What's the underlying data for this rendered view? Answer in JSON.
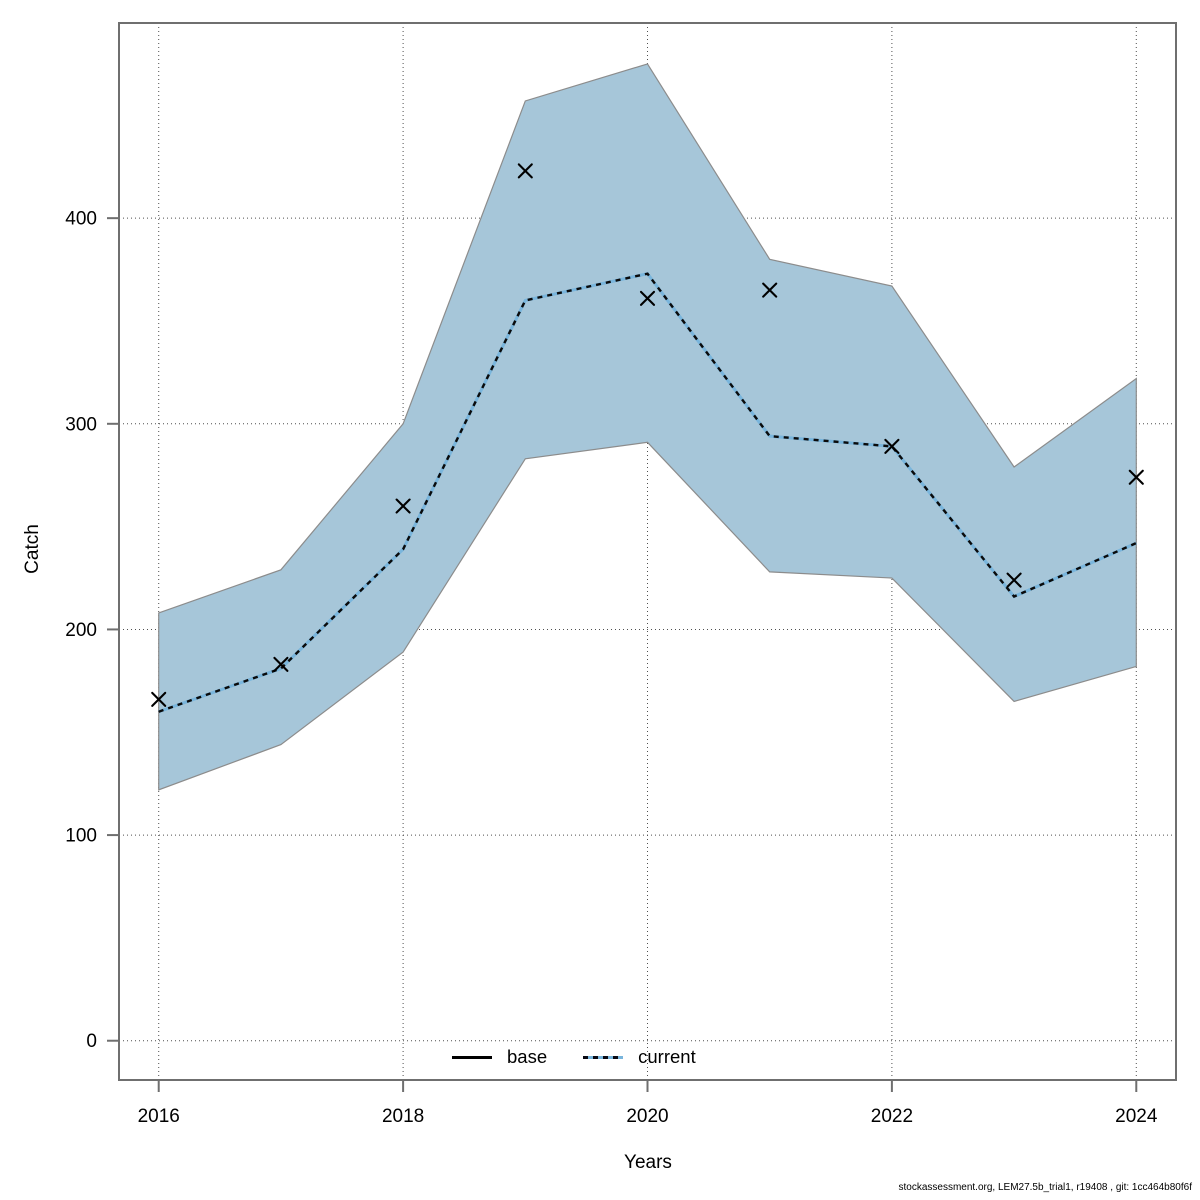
{
  "figure": {
    "x_axis_label": "Years",
    "y_axis_label": "Catch",
    "footer": "stockassessment.org, LEM27.5b_trial1, r19408 , git: 1cc464b80f6f"
  },
  "legend": {
    "base_label": "base",
    "current_label": "current"
  },
  "chart_data": {
    "type": "line",
    "title": "",
    "xlabel": "Years",
    "ylabel": "Catch",
    "x": [
      2016,
      2017,
      2018,
      2019,
      2020,
      2021,
      2022,
      2023,
      2024
    ],
    "x_tick_labels": [
      "2016",
      "2018",
      "2020",
      "2022",
      "2024"
    ],
    "x_tick_values": [
      2016,
      2018,
      2020,
      2022,
      2024
    ],
    "y_tick_labels": [
      "0",
      "100",
      "200",
      "300",
      "400"
    ],
    "y_tick_values": [
      0,
      100,
      200,
      300,
      400
    ],
    "xlim": [
      2015.675,
      2024.325
    ],
    "ylim": [
      -19.1,
      494.9
    ],
    "grid": "dotted lines at labeled x and y ticks",
    "legend_position": "bottom-center-inside",
    "series": [
      {
        "name": "current",
        "style": "dashed line, alternating black/light-blue",
        "values": [
          160,
          181,
          239,
          360,
          373,
          294,
          289,
          216,
          242
        ]
      },
      {
        "name": "observations",
        "style": "x markers",
        "values": [
          166,
          183,
          260,
          423,
          361,
          365,
          289,
          224,
          274
        ]
      },
      {
        "name": "ci_lower",
        "style": "confidence band lower edge",
        "values": [
          122,
          144,
          189,
          283,
          291,
          228,
          225,
          165,
          182
        ]
      },
      {
        "name": "ci_upper",
        "style": "confidence band upper edge",
        "values": [
          208,
          229,
          300,
          457,
          475,
          380,
          367,
          279,
          322
        ]
      }
    ],
    "colors": {
      "band_fill": "#a6c6d9",
      "band_edge": "#8c8c8c",
      "current_line_light": "#79b5dc",
      "current_line_dark": "#0a0a0a",
      "marker": "#000000",
      "grid": "#4f4f4f",
      "axis_box": "#6f6f6f",
      "text": "#000000"
    }
  }
}
